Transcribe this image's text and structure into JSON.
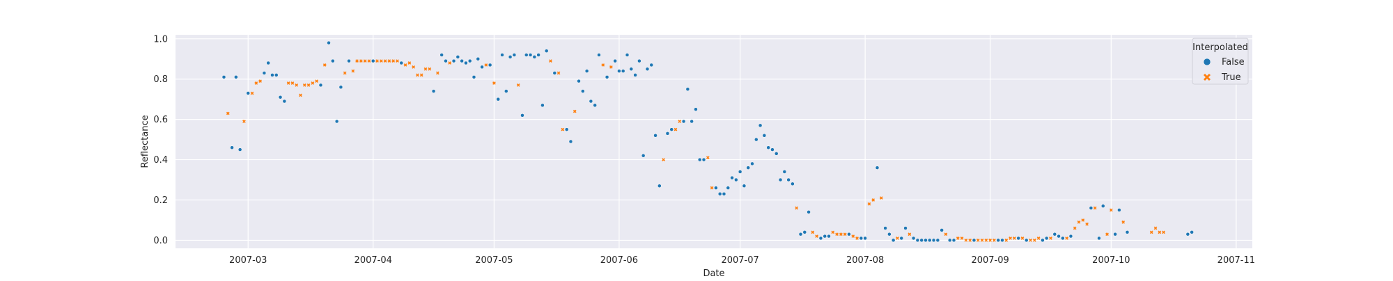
{
  "chart_data": {
    "type": "scatter",
    "title": "",
    "xlabel": "Date",
    "ylabel": "Reflectance",
    "xlim": [
      "2007-02-11",
      "2007-11-05"
    ],
    "ylim": [
      -0.04,
      1.02
    ],
    "x_ticks": [
      "2007-03-01",
      "2007-04-01",
      "2007-05-01",
      "2007-06-01",
      "2007-07-01",
      "2007-08-01",
      "2007-09-01",
      "2007-10-01",
      "2007-11-01"
    ],
    "x_tick_labels": [
      "2007-03",
      "2007-04",
      "2007-05",
      "2007-06",
      "2007-07",
      "2007-08",
      "2007-09",
      "2007-10",
      "2007-11"
    ],
    "y_ticks": [
      0.0,
      0.2,
      0.4,
      0.6,
      0.8,
      1.0
    ],
    "y_tick_labels": [
      "0.0",
      "0.2",
      "0.4",
      "0.6",
      "0.8",
      "1.0"
    ],
    "grid": true,
    "legend": {
      "title": "Interpolated",
      "placement": "top-right",
      "entries": [
        {
          "label": "False",
          "marker": "circle",
          "color": "#1f77b4"
        },
        {
          "label": "True",
          "marker": "x",
          "color": "#ff7f0e"
        }
      ]
    },
    "colors": {
      "False": "#1f77b4",
      "True": "#ff7f0e",
      "plot_background": "#eaeaf2",
      "grid": "#ffffff"
    },
    "series": [
      {
        "name": "False",
        "marker": "circle",
        "color": "#1f77b4",
        "points": [
          [
            "2007-02-23",
            0.81
          ],
          [
            "2007-02-25",
            0.46
          ],
          [
            "2007-02-26",
            0.81
          ],
          [
            "2007-02-27",
            0.45
          ],
          [
            "2007-03-01",
            0.73
          ],
          [
            "2007-03-05",
            0.83
          ],
          [
            "2007-03-06",
            0.88
          ],
          [
            "2007-03-07",
            0.82
          ],
          [
            "2007-03-08",
            0.82
          ],
          [
            "2007-03-09",
            0.71
          ],
          [
            "2007-03-10",
            0.69
          ],
          [
            "2007-03-19",
            0.77
          ],
          [
            "2007-03-21",
            0.98
          ],
          [
            "2007-03-22",
            0.89
          ],
          [
            "2007-03-23",
            0.59
          ],
          [
            "2007-03-24",
            0.76
          ],
          [
            "2007-03-26",
            0.89
          ],
          [
            "2007-04-01",
            0.89
          ],
          [
            "2007-04-08",
            0.88
          ],
          [
            "2007-04-16",
            0.74
          ],
          [
            "2007-04-18",
            0.92
          ],
          [
            "2007-04-19",
            0.89
          ],
          [
            "2007-04-21",
            0.89
          ],
          [
            "2007-04-22",
            0.91
          ],
          [
            "2007-04-23",
            0.89
          ],
          [
            "2007-04-24",
            0.88
          ],
          [
            "2007-04-25",
            0.89
          ],
          [
            "2007-04-26",
            0.81
          ],
          [
            "2007-04-27",
            0.9
          ],
          [
            "2007-04-28",
            0.86
          ],
          [
            "2007-04-30",
            0.87
          ],
          [
            "2007-05-02",
            0.7
          ],
          [
            "2007-05-03",
            0.92
          ],
          [
            "2007-05-04",
            0.74
          ],
          [
            "2007-05-05",
            0.91
          ],
          [
            "2007-05-06",
            0.92
          ],
          [
            "2007-05-08",
            0.62
          ],
          [
            "2007-05-09",
            0.92
          ],
          [
            "2007-05-10",
            0.92
          ],
          [
            "2007-05-11",
            0.91
          ],
          [
            "2007-05-12",
            0.92
          ],
          [
            "2007-05-13",
            0.67
          ],
          [
            "2007-05-14",
            0.94
          ],
          [
            "2007-05-16",
            0.83
          ],
          [
            "2007-05-19",
            0.55
          ],
          [
            "2007-05-20",
            0.49
          ],
          [
            "2007-05-22",
            0.79
          ],
          [
            "2007-05-23",
            0.74
          ],
          [
            "2007-05-24",
            0.84
          ],
          [
            "2007-05-25",
            0.69
          ],
          [
            "2007-05-26",
            0.67
          ],
          [
            "2007-05-27",
            0.92
          ],
          [
            "2007-05-29",
            0.81
          ],
          [
            "2007-05-31",
            0.89
          ],
          [
            "2007-06-01",
            0.84
          ],
          [
            "2007-06-02",
            0.84
          ],
          [
            "2007-06-03",
            0.92
          ],
          [
            "2007-06-04",
            0.85
          ],
          [
            "2007-06-05",
            0.82
          ],
          [
            "2007-06-06",
            0.89
          ],
          [
            "2007-06-07",
            0.42
          ],
          [
            "2007-06-08",
            0.85
          ],
          [
            "2007-06-09",
            0.87
          ],
          [
            "2007-06-10",
            0.52
          ],
          [
            "2007-06-11",
            0.27
          ],
          [
            "2007-06-13",
            0.53
          ],
          [
            "2007-06-14",
            0.55
          ],
          [
            "2007-06-17",
            0.59
          ],
          [
            "2007-06-18",
            0.75
          ],
          [
            "2007-06-19",
            0.59
          ],
          [
            "2007-06-20",
            0.65
          ],
          [
            "2007-06-21",
            0.4
          ],
          [
            "2007-06-22",
            0.4
          ],
          [
            "2007-06-25",
            0.26
          ],
          [
            "2007-06-26",
            0.23
          ],
          [
            "2007-06-27",
            0.23
          ],
          [
            "2007-06-28",
            0.26
          ],
          [
            "2007-06-29",
            0.31
          ],
          [
            "2007-06-30",
            0.3
          ],
          [
            "2007-07-01",
            0.34
          ],
          [
            "2007-07-02",
            0.27
          ],
          [
            "2007-07-03",
            0.36
          ],
          [
            "2007-07-04",
            0.38
          ],
          [
            "2007-07-05",
            0.5
          ],
          [
            "2007-07-06",
            0.57
          ],
          [
            "2007-07-07",
            0.52
          ],
          [
            "2007-07-08",
            0.46
          ],
          [
            "2007-07-09",
            0.45
          ],
          [
            "2007-07-10",
            0.43
          ],
          [
            "2007-07-11",
            0.3
          ],
          [
            "2007-07-12",
            0.34
          ],
          [
            "2007-07-13",
            0.3
          ],
          [
            "2007-07-14",
            0.28
          ],
          [
            "2007-07-16",
            0.03
          ],
          [
            "2007-07-17",
            0.04
          ],
          [
            "2007-07-18",
            0.14
          ],
          [
            "2007-07-21",
            0.01
          ],
          [
            "2007-07-22",
            0.02
          ],
          [
            "2007-07-23",
            0.02
          ],
          [
            "2007-07-28",
            0.03
          ],
          [
            "2007-07-31",
            0.01
          ],
          [
            "2007-08-01",
            0.01
          ],
          [
            "2007-08-04",
            0.36
          ],
          [
            "2007-08-06",
            0.06
          ],
          [
            "2007-08-07",
            0.03
          ],
          [
            "2007-08-08",
            0.0
          ],
          [
            "2007-08-10",
            0.01
          ],
          [
            "2007-08-11",
            0.06
          ],
          [
            "2007-08-13",
            0.01
          ],
          [
            "2007-08-14",
            0.0
          ],
          [
            "2007-08-15",
            0.0
          ],
          [
            "2007-08-16",
            0.0
          ],
          [
            "2007-08-17",
            0.0
          ],
          [
            "2007-08-18",
            0.0
          ],
          [
            "2007-08-19",
            0.0
          ],
          [
            "2007-08-20",
            0.05
          ],
          [
            "2007-08-22",
            0.0
          ],
          [
            "2007-08-23",
            0.0
          ],
          [
            "2007-08-28",
            0.0
          ],
          [
            "2007-09-03",
            0.0
          ],
          [
            "2007-09-04",
            0.0
          ],
          [
            "2007-09-08",
            0.01
          ],
          [
            "2007-09-10",
            0.0
          ],
          [
            "2007-09-14",
            0.0
          ],
          [
            "2007-09-15",
            0.01
          ],
          [
            "2007-09-17",
            0.03
          ],
          [
            "2007-09-18",
            0.02
          ],
          [
            "2007-09-19",
            0.01
          ],
          [
            "2007-09-21",
            0.02
          ],
          [
            "2007-09-26",
            0.16
          ],
          [
            "2007-09-28",
            0.01
          ],
          [
            "2007-09-29",
            0.17
          ],
          [
            "2007-10-02",
            0.03
          ],
          [
            "2007-10-03",
            0.15
          ],
          [
            "2007-10-05",
            0.04
          ],
          [
            "2007-10-20",
            0.03
          ],
          [
            "2007-10-21",
            0.04
          ]
        ]
      },
      {
        "name": "True",
        "marker": "x",
        "color": "#ff7f0e",
        "points": [
          [
            "2007-02-24",
            0.63
          ],
          [
            "2007-02-28",
            0.59
          ],
          [
            "2007-03-02",
            0.73
          ],
          [
            "2007-03-03",
            0.78
          ],
          [
            "2007-03-04",
            0.79
          ],
          [
            "2007-03-11",
            0.78
          ],
          [
            "2007-03-12",
            0.78
          ],
          [
            "2007-03-13",
            0.77
          ],
          [
            "2007-03-14",
            0.72
          ],
          [
            "2007-03-15",
            0.77
          ],
          [
            "2007-03-16",
            0.77
          ],
          [
            "2007-03-17",
            0.78
          ],
          [
            "2007-03-18",
            0.79
          ],
          [
            "2007-03-20",
            0.87
          ],
          [
            "2007-03-25",
            0.83
          ],
          [
            "2007-03-27",
            0.84
          ],
          [
            "2007-03-28",
            0.89
          ],
          [
            "2007-03-29",
            0.89
          ],
          [
            "2007-03-30",
            0.89
          ],
          [
            "2007-03-31",
            0.89
          ],
          [
            "2007-04-02",
            0.89
          ],
          [
            "2007-04-03",
            0.89
          ],
          [
            "2007-04-04",
            0.89
          ],
          [
            "2007-04-05",
            0.89
          ],
          [
            "2007-04-06",
            0.89
          ],
          [
            "2007-04-07",
            0.89
          ],
          [
            "2007-04-09",
            0.87
          ],
          [
            "2007-04-10",
            0.88
          ],
          [
            "2007-04-11",
            0.86
          ],
          [
            "2007-04-12",
            0.82
          ],
          [
            "2007-04-13",
            0.82
          ],
          [
            "2007-04-14",
            0.85
          ],
          [
            "2007-04-15",
            0.85
          ],
          [
            "2007-04-17",
            0.83
          ],
          [
            "2007-04-20",
            0.88
          ],
          [
            "2007-04-29",
            0.87
          ],
          [
            "2007-05-01",
            0.78
          ],
          [
            "2007-05-07",
            0.77
          ],
          [
            "2007-05-15",
            0.89
          ],
          [
            "2007-05-17",
            0.83
          ],
          [
            "2007-05-18",
            0.55
          ],
          [
            "2007-05-21",
            0.64
          ],
          [
            "2007-05-28",
            0.87
          ],
          [
            "2007-05-30",
            0.86
          ],
          [
            "2007-06-12",
            0.4
          ],
          [
            "2007-06-15",
            0.55
          ],
          [
            "2007-06-16",
            0.59
          ],
          [
            "2007-06-23",
            0.41
          ],
          [
            "2007-06-24",
            0.26
          ],
          [
            "2007-07-15",
            0.16
          ],
          [
            "2007-07-19",
            0.04
          ],
          [
            "2007-07-20",
            0.02
          ],
          [
            "2007-07-24",
            0.04
          ],
          [
            "2007-07-25",
            0.03
          ],
          [
            "2007-07-26",
            0.03
          ],
          [
            "2007-07-27",
            0.03
          ],
          [
            "2007-07-29",
            0.02
          ],
          [
            "2007-07-30",
            0.01
          ],
          [
            "2007-08-02",
            0.18
          ],
          [
            "2007-08-03",
            0.2
          ],
          [
            "2007-08-05",
            0.21
          ],
          [
            "2007-08-09",
            0.01
          ],
          [
            "2007-08-12",
            0.03
          ],
          [
            "2007-08-21",
            0.03
          ],
          [
            "2007-08-24",
            0.01
          ],
          [
            "2007-08-25",
            0.01
          ],
          [
            "2007-08-26",
            0.0
          ],
          [
            "2007-08-27",
            0.0
          ],
          [
            "2007-08-29",
            0.0
          ],
          [
            "2007-08-30",
            0.0
          ],
          [
            "2007-08-31",
            0.0
          ],
          [
            "2007-09-01",
            0.0
          ],
          [
            "2007-09-02",
            0.0
          ],
          [
            "2007-09-05",
            0.0
          ],
          [
            "2007-09-06",
            0.01
          ],
          [
            "2007-09-07",
            0.01
          ],
          [
            "2007-09-09",
            0.01
          ],
          [
            "2007-09-11",
            0.0
          ],
          [
            "2007-09-12",
            0.0
          ],
          [
            "2007-09-13",
            0.01
          ],
          [
            "2007-09-16",
            0.01
          ],
          [
            "2007-09-20",
            0.01
          ],
          [
            "2007-09-22",
            0.06
          ],
          [
            "2007-09-23",
            0.09
          ],
          [
            "2007-09-24",
            0.1
          ],
          [
            "2007-09-25",
            0.08
          ],
          [
            "2007-09-27",
            0.16
          ],
          [
            "2007-09-30",
            0.03
          ],
          [
            "2007-10-01",
            0.15
          ],
          [
            "2007-10-04",
            0.09
          ],
          [
            "2007-10-11",
            0.04
          ],
          [
            "2007-10-12",
            0.06
          ],
          [
            "2007-10-13",
            0.04
          ],
          [
            "2007-10-14",
            0.04
          ]
        ]
      }
    ]
  }
}
